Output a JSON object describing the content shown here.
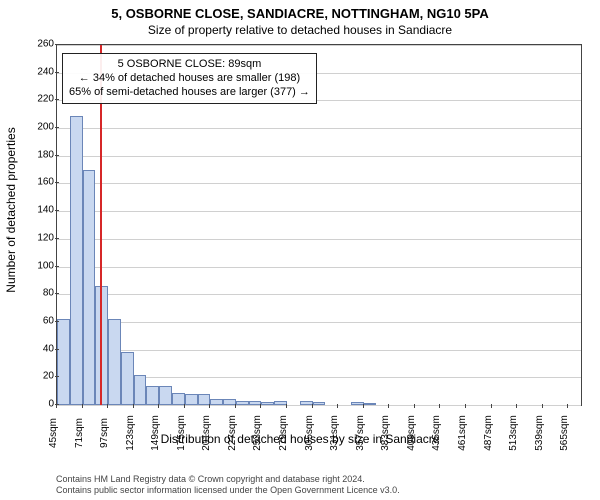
{
  "title": "5, OSBORNE CLOSE, SANDIACRE, NOTTINGHAM, NG10 5PA",
  "subtitle": "Size of property relative to detached houses in Sandiacre",
  "chart": {
    "type": "histogram",
    "ylabel": "Number of detached properties",
    "xlabel": "Distribution of detached houses by size in Sandiacre",
    "ylim": [
      0,
      260
    ],
    "ytick_step": 20,
    "xticks_start": 45,
    "xticks_step": 26,
    "xticks_count": 21,
    "xtick_unit": "sqm",
    "background_color": "#ffffff",
    "grid_color": "#d0d0d0",
    "bar_fill": "#c9d8f0",
    "bar_stroke": "#6b86b8",
    "reference_line_color": "#d62728",
    "reference_value": 89,
    "bin_start": 45,
    "bin_width": 13,
    "values": [
      62,
      209,
      170,
      86,
      62,
      38,
      22,
      14,
      14,
      9,
      8,
      8,
      4,
      4,
      3,
      3,
      2,
      3,
      0,
      3,
      2,
      0,
      0,
      2,
      1,
      0,
      0,
      0,
      0,
      0,
      0,
      0,
      0,
      0,
      0,
      0,
      0,
      0,
      0,
      0,
      0
    ],
    "annotation": {
      "line1": "5 OSBORNE CLOSE: 89sqm",
      "line2": "← 34% of detached houses are smaller (198)",
      "line3": "65% of semi-detached houses are larger (377) →",
      "box_border": "#222222"
    }
  },
  "footer": {
    "line1": "Contains HM Land Registry data © Crown copyright and database right 2024.",
    "line2": "Contains public sector information licensed under the Open Government Licence v3.0."
  }
}
